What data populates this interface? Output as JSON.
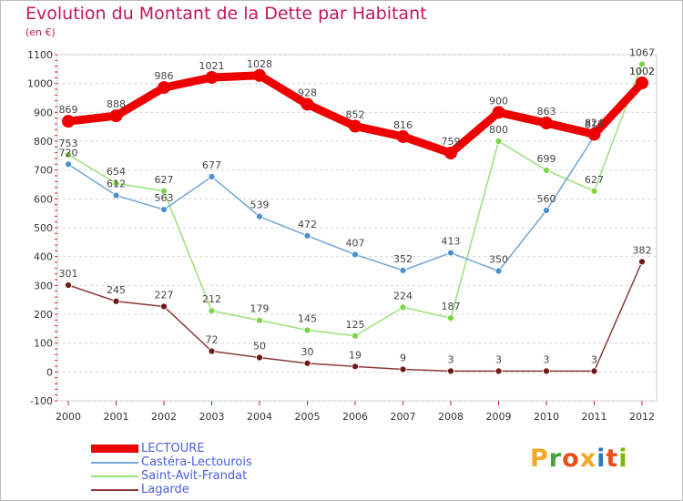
{
  "header": {
    "title": "Evolution du Montant de la Dette par Habitant",
    "unit": "(en €)"
  },
  "logo": {
    "text": "Proxiti",
    "colors": [
      "#f5a623",
      "#3fa535",
      "#e94e1b",
      "#f5a623",
      "#2a7ab8",
      "#e94e1b",
      "#7ab800"
    ]
  },
  "chart_data": {
    "type": "line",
    "title": "Evolution du Montant de la Dette par Habitant",
    "subtitle": "(en €)",
    "xlabel": "",
    "ylabel": "",
    "x": [
      "2000",
      "2001",
      "2002",
      "2003",
      "2004",
      "2005",
      "2006",
      "2007",
      "2008",
      "2009",
      "2010",
      "2011",
      "2012"
    ],
    "ylim": [
      -100,
      1100
    ],
    "yticks": [
      -100,
      0,
      100,
      200,
      300,
      400,
      500,
      600,
      700,
      800,
      900,
      1000,
      1100
    ],
    "grid": "horizontal dashed",
    "legend_position": "bottom-left",
    "series": [
      {
        "name": "LECTOURE",
        "color": "#ee0000",
        "values": [
          869,
          888,
          986,
          1021,
          1028,
          928,
          852,
          816,
          759,
          900,
          863,
          824,
          1002
        ],
        "labels": [
          "869",
          "888",
          "986",
          "1021",
          "1028",
          "928",
          "852",
          "816",
          "759",
          "900",
          "863",
          "824",
          "1002"
        ],
        "thick": true
      },
      {
        "name": "Castéra-Lectourois",
        "color": "#6fa6d6",
        "point_color": "#4a90d0",
        "values": [
          720,
          612,
          563,
          677,
          539,
          472,
          407,
          352,
          413,
          350,
          560,
          817,
          1002
        ],
        "labels": [
          "720",
          "612",
          "563",
          "677",
          "539",
          "472",
          "407",
          "352",
          "413",
          "350",
          "560",
          "817",
          "1002"
        ]
      },
      {
        "name": "Saint-Avit-Frandat",
        "color": "#9be07a",
        "point_color": "#7cd44a",
        "values": [
          753,
          654,
          627,
          212,
          179,
          145,
          125,
          224,
          187,
          800,
          699,
          627,
          1067
        ],
        "labels": [
          "753",
          "654",
          "627",
          "212",
          "179",
          "145",
          "125",
          "224",
          "187",
          "800",
          "699",
          "627",
          "1067"
        ]
      },
      {
        "name": "Lagarde",
        "color": "#8b3a3a",
        "point_color": "#6e1818",
        "values": [
          301,
          245,
          227,
          72,
          50,
          30,
          19,
          9,
          3,
          3,
          3,
          3,
          382
        ],
        "labels": [
          "301",
          "245",
          "227",
          "72",
          "50",
          "30",
          "19",
          "9",
          "3",
          "3",
          "3",
          "3",
          "382"
        ]
      }
    ]
  }
}
